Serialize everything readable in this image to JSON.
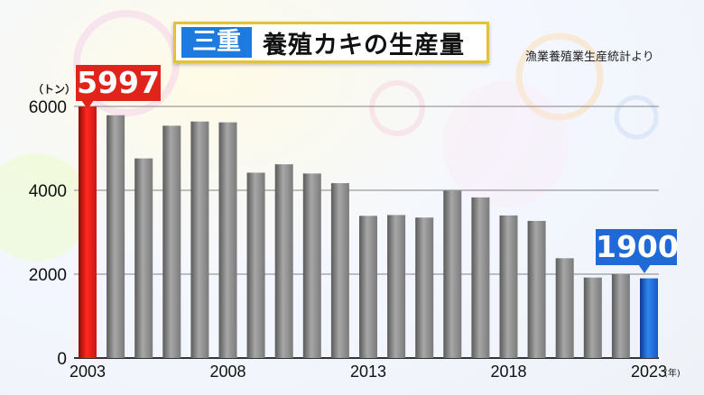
{
  "title": {
    "tag": "三重",
    "main": "養殖カキの生産量"
  },
  "source": "漁業養殖業生産統計より",
  "unit_label": "（トン）",
  "year_unit": "(年)",
  "highlight_first": "5997",
  "highlight_last": "1900",
  "colors": {
    "first_bar": "#e0231b",
    "last_bar": "#1f6ad6",
    "bars": "#8a8a8a"
  },
  "chart_data": {
    "type": "bar",
    "title": "養殖カキの生産量",
    "ylabel": "（トン）",
    "xlabel": "(年)",
    "ylim": [
      0,
      6000
    ],
    "yticks": [
      0,
      2000,
      4000,
      6000
    ],
    "xtick_labels": [
      "2003",
      "2008",
      "2013",
      "2018",
      "2023"
    ],
    "grid": true,
    "categories": [
      "2003",
      "2004",
      "2005",
      "2006",
      "2007",
      "2008",
      "2009",
      "2010",
      "2011",
      "2012",
      "2013",
      "2014",
      "2015",
      "2016",
      "2017",
      "2018",
      "2019",
      "2020",
      "2021",
      "2022",
      "2023"
    ],
    "values": [
      5997,
      5790,
      4760,
      5540,
      5640,
      5620,
      4420,
      4620,
      4400,
      4170,
      3390,
      3410,
      3350,
      3990,
      3830,
      3400,
      3270,
      2380,
      1920,
      2000,
      1900
    ]
  }
}
